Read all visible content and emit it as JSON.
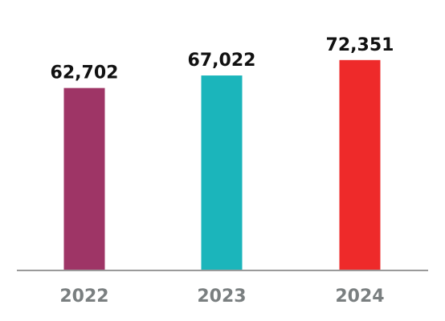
{
  "chart_data": {
    "type": "bar",
    "categories": [
      "2022",
      "2023",
      "2024"
    ],
    "values": [
      62702,
      67022,
      72351
    ],
    "value_labels": [
      "62,702",
      "67,022",
      "72,351"
    ],
    "colors": [
      "#9e3566",
      "#1bb5bb",
      "#ee2a2a"
    ],
    "axis_color": "#9a9a9a",
    "title": "",
    "xlabel": "",
    "ylabel": "",
    "ylim": [
      0,
      82000
    ],
    "grid": false,
    "legend": "none"
  }
}
